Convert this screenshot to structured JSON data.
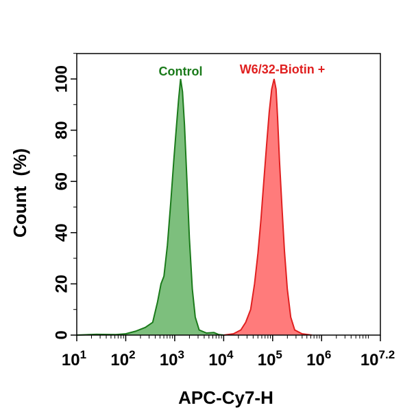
{
  "chart_data": {
    "type": "area",
    "xlabel": "APC-Cy7-H",
    "ylabel": "Count  (%)",
    "x_scale": "log10",
    "xlim_log10": [
      1,
      7.2
    ],
    "ylim": [
      0,
      110
    ],
    "x_ticks": [
      {
        "base": "10",
        "exp": "1",
        "log10": 1
      },
      {
        "base": "10",
        "exp": "2",
        "log10": 2
      },
      {
        "base": "10",
        "exp": "3",
        "log10": 3
      },
      {
        "base": "10",
        "exp": "4",
        "log10": 4
      },
      {
        "base": "10",
        "exp": "5",
        "log10": 5
      },
      {
        "base": "10",
        "exp": "6",
        "log10": 6
      },
      {
        "base": "10",
        "exp": "7.2",
        "log10": 7.2
      }
    ],
    "y_ticks": [
      "0",
      "20",
      "40",
      "60",
      "80",
      "100"
    ],
    "grid": false,
    "series": [
      {
        "name": "Control",
        "color": "#1a7a1a",
        "fill": "#7dbf7d",
        "points": [
          [
            1.0,
            0
          ],
          [
            1.4,
            0.3
          ],
          [
            1.8,
            0.2
          ],
          [
            2.0,
            0.5
          ],
          [
            2.2,
            1.5
          ],
          [
            2.4,
            3
          ],
          [
            2.55,
            5
          ],
          [
            2.65,
            13
          ],
          [
            2.72,
            20
          ],
          [
            2.78,
            23
          ],
          [
            2.85,
            35
          ],
          [
            2.92,
            52
          ],
          [
            2.98,
            68
          ],
          [
            3.03,
            80
          ],
          [
            3.08,
            92
          ],
          [
            3.12,
            100
          ],
          [
            3.16,
            95
          ],
          [
            3.2,
            82
          ],
          [
            3.25,
            60
          ],
          [
            3.3,
            38
          ],
          [
            3.36,
            18
          ],
          [
            3.42,
            7
          ],
          [
            3.5,
            2
          ],
          [
            3.65,
            0.8
          ],
          [
            3.8,
            1
          ],
          [
            3.9,
            0.2
          ],
          [
            4.0,
            0
          ]
        ]
      },
      {
        "name": "W6/32-Biotin  +",
        "color": "#e02020",
        "fill": "#ff7b7b",
        "points": [
          [
            4.0,
            0
          ],
          [
            4.2,
            0.5
          ],
          [
            4.35,
            2
          ],
          [
            4.45,
            5
          ],
          [
            4.55,
            10
          ],
          [
            4.63,
            20
          ],
          [
            4.7,
            32
          ],
          [
            4.76,
            45
          ],
          [
            4.82,
            60
          ],
          [
            4.88,
            75
          ],
          [
            4.93,
            87
          ],
          [
            4.98,
            96
          ],
          [
            5.03,
            100
          ],
          [
            5.07,
            96
          ],
          [
            5.1,
            85
          ],
          [
            5.14,
            68
          ],
          [
            5.19,
            50
          ],
          [
            5.24,
            33
          ],
          [
            5.3,
            18
          ],
          [
            5.37,
            7
          ],
          [
            5.45,
            2
          ],
          [
            5.6,
            0.5
          ],
          [
            5.8,
            0
          ]
        ]
      }
    ]
  }
}
